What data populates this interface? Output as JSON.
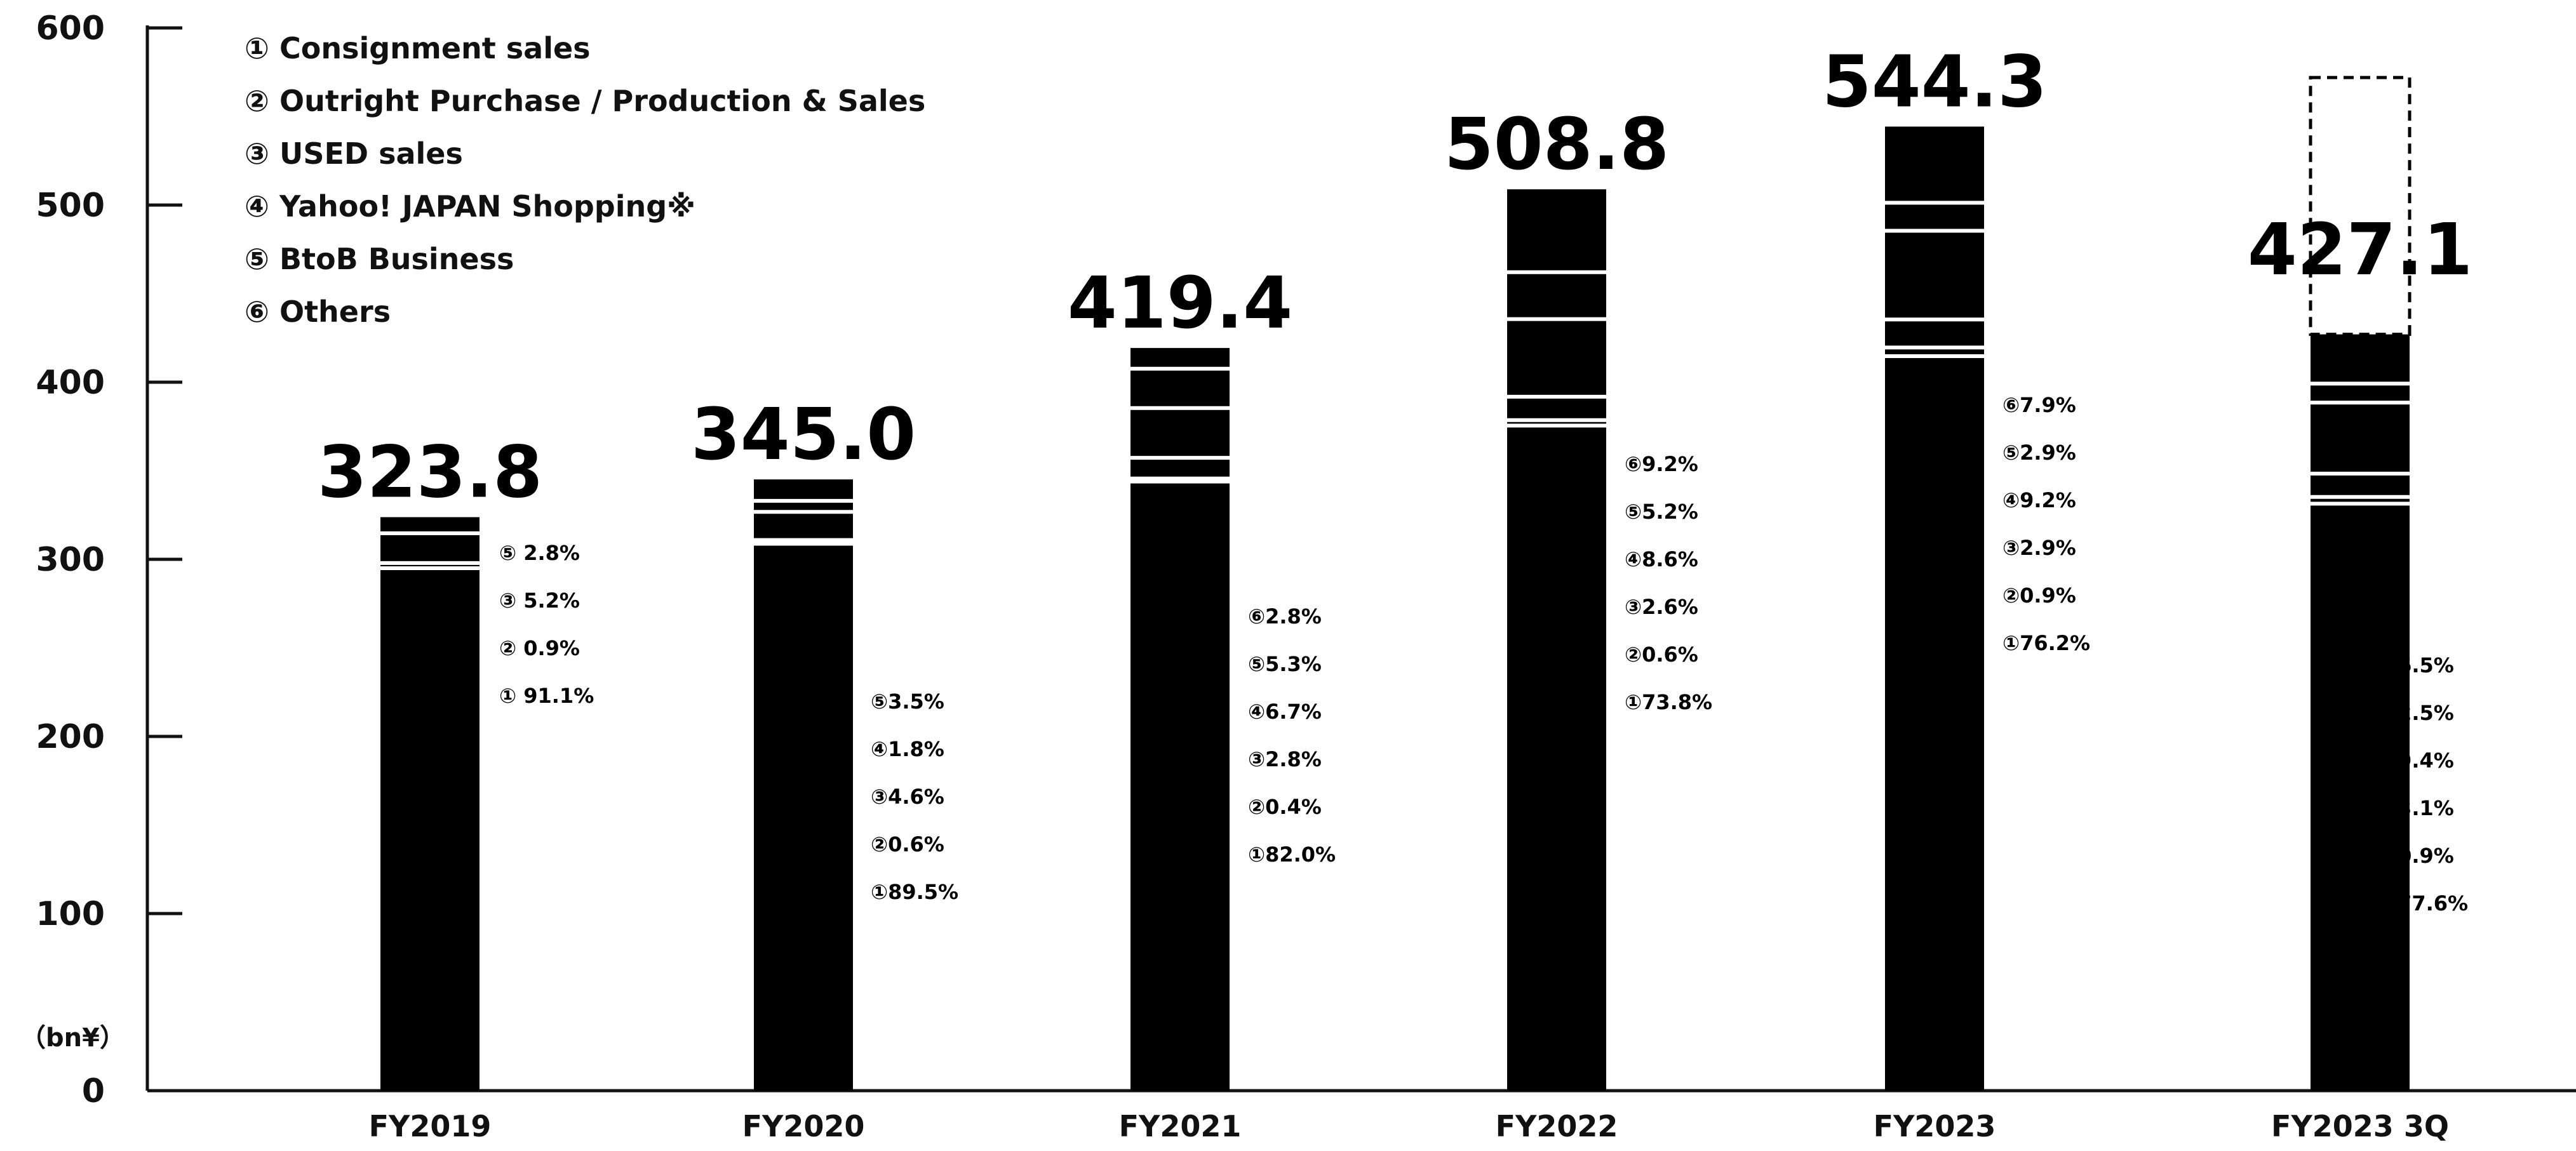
{
  "chart_data": {
    "type": "bar",
    "stacked": true,
    "unit_label": "（bn¥）",
    "ylim": [
      0,
      600
    ],
    "yticks": [
      0,
      100,
      200,
      300,
      400,
      500,
      600
    ],
    "categories": [
      "FY2019",
      "FY2020",
      "FY2021",
      "FY2022",
      "FY2023",
      "FY2023 3Q"
    ],
    "totals": [
      "323.8",
      "345.0",
      "419.4",
      "508.8",
      "544.3",
      "427.1"
    ],
    "total_values": [
      323.8,
      345.0,
      419.4,
      508.8,
      544.3,
      427.1
    ],
    "legend": [
      "① Consignment sales",
      "② Outright Purchase / Production & Sales",
      "③ USED sales",
      "④ Yahoo! JAPAN Shopping※",
      "⑤ BtoB Business",
      "⑥ Others"
    ],
    "bars": [
      {
        "category": "FY2019",
        "segments": [
          {
            "series": 1,
            "value": 295.0
          },
          {
            "series": 2,
            "value": 2.9
          },
          {
            "series": 3,
            "value": 16.8
          },
          {
            "series": 5,
            "value": 9.1
          }
        ],
        "labels": [
          "⑤ 2.8%",
          "③ 5.2%",
          "② 0.9%",
          "① 91.1%"
        ]
      },
      {
        "category": "FY2020",
        "segments": [
          {
            "series": 1,
            "value": 308.8
          },
          {
            "series": 2,
            "value": 2.1
          },
          {
            "series": 3,
            "value": 15.9
          },
          {
            "series": 4,
            "value": 6.2
          },
          {
            "series": 5,
            "value": 12.1
          }
        ],
        "labels": [
          "⑤3.5%",
          "④1.8%",
          "③4.6%",
          "②0.6%",
          "①89.5%"
        ]
      },
      {
        "category": "FY2021",
        "segments": [
          {
            "series": 1,
            "value": 343.9
          },
          {
            "series": 2,
            "value": 1.7
          },
          {
            "series": 3,
            "value": 11.7
          },
          {
            "series": 4,
            "value": 28.1
          },
          {
            "series": 5,
            "value": 22.2
          },
          {
            "series": 6,
            "value": 11.7
          }
        ],
        "labels": [
          "⑥2.8%",
          "⑤5.3%",
          "④6.7%",
          "③2.8%",
          "②0.4%",
          "①82.0%"
        ]
      },
      {
        "category": "FY2022",
        "segments": [
          {
            "series": 1,
            "value": 375.5
          },
          {
            "series": 2,
            "value": 3.1
          },
          {
            "series": 3,
            "value": 13.2
          },
          {
            "series": 4,
            "value": 43.8
          },
          {
            "series": 5,
            "value": 26.5
          },
          {
            "series": 6,
            "value": 46.8
          }
        ],
        "labels": [
          "⑥9.2%",
          "⑤5.2%",
          "④8.6%",
          "③2.6%",
          "②0.6%",
          "①73.8%"
        ]
      },
      {
        "category": "FY2023",
        "segments": [
          {
            "series": 1,
            "value": 414.7
          },
          {
            "series": 2,
            "value": 4.9
          },
          {
            "series": 3,
            "value": 15.8
          },
          {
            "series": 4,
            "value": 50.1
          },
          {
            "series": 5,
            "value": 15.8
          },
          {
            "series": 6,
            "value": 43.0
          }
        ],
        "labels": [
          "⑥7.9%",
          "⑤2.9%",
          "④9.2%",
          "③2.9%",
          "②0.9%",
          "①76.2%"
        ]
      },
      {
        "category": "FY2023 3Q",
        "segments": [
          {
            "series": 1,
            "value": 331.4
          },
          {
            "series": 2,
            "value": 3.8
          },
          {
            "series": 3,
            "value": 13.2
          },
          {
            "series": 4,
            "value": 40.1
          },
          {
            "series": 5,
            "value": 10.7
          },
          {
            "series": 6,
            "value": 27.8
          }
        ],
        "labels": [
          "⑥6.5%",
          "⑤2.5%",
          "④9.4%",
          "③3.1%",
          "②0.9%",
          "①77.6%"
        ],
        "forecast_outline_value": 572
      }
    ],
    "colors": {
      "bar": "#000000",
      "separator": "#ffffff",
      "axis": "#111111",
      "text": "#000000"
    },
    "grid": false,
    "legend_position": "top-left"
  }
}
